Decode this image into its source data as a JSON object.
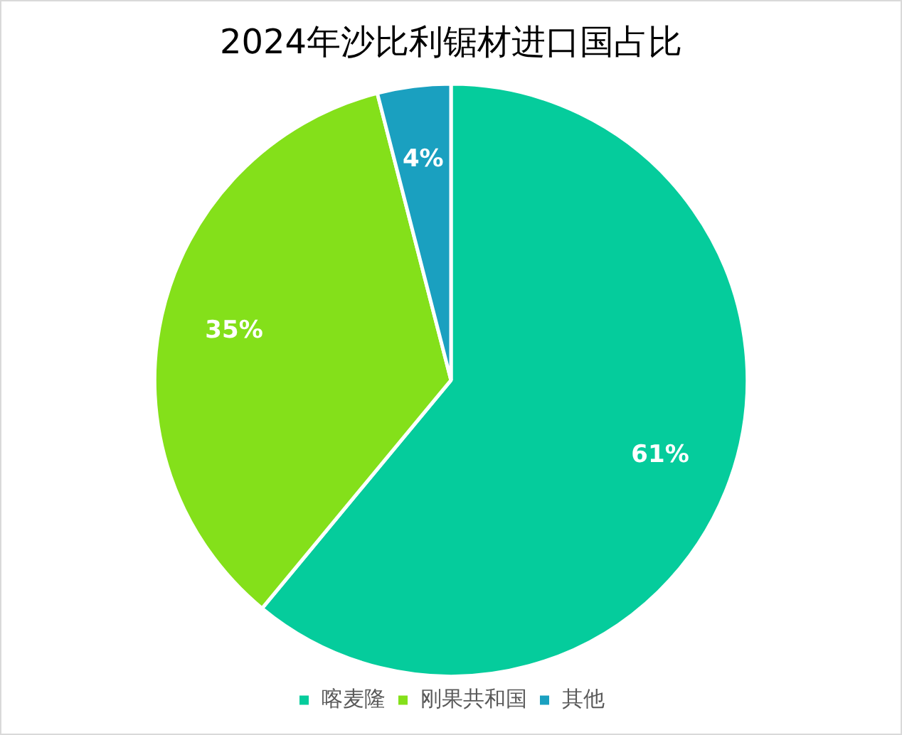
{
  "chart_data": {
    "type": "pie",
    "title": "2024年沙比利锯材进口国占比",
    "categories": [
      "喀麦隆",
      "刚果共和国",
      "其他"
    ],
    "values": [
      61,
      35,
      4
    ],
    "colors": [
      "#05cc9c",
      "#84e01a",
      "#1aa0c0"
    ],
    "value_labels": [
      "61%",
      "35%",
      "4%"
    ],
    "legend": "bottom"
  }
}
